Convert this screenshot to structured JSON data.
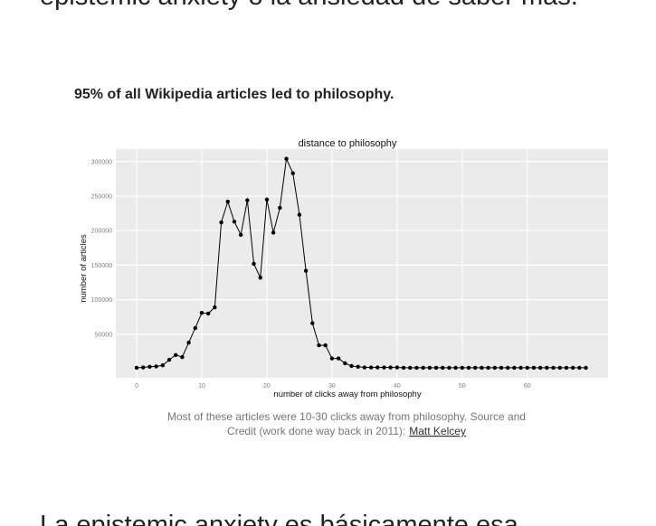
{
  "top_text": "epistemic anxiety o la ansiedad de saber más.",
  "heading": "95% of all Wikipedia articles led to philosophy.",
  "chart_data": {
    "type": "line",
    "title": "distance to philosophy",
    "x_label": "number of clicks away from philosophy",
    "y_label": "number of articles",
    "x": [
      0,
      1,
      2,
      3,
      4,
      5,
      6,
      7,
      8,
      9,
      10,
      11,
      12,
      13,
      14,
      15,
      16,
      17,
      18,
      19,
      20,
      21,
      22,
      23,
      24,
      25,
      26,
      27,
      28,
      29,
      30,
      31,
      32,
      33,
      34,
      35,
      36,
      37,
      38,
      39,
      40,
      41,
      42,
      43,
      44,
      45,
      46,
      47,
      48,
      49,
      50,
      51,
      52,
      53,
      54,
      55,
      56,
      57,
      58,
      59,
      60,
      61,
      62,
      63,
      64,
      65,
      66,
      67,
      68,
      69
    ],
    "values": [
      1500,
      2000,
      3000,
      3500,
      5000,
      13000,
      20000,
      17000,
      38000,
      59000,
      81000,
      80000,
      89000,
      212000,
      242000,
      213000,
      194000,
      244000,
      152000,
      132000,
      245000,
      197000,
      233000,
      304000,
      283000,
      223000,
      142000,
      66000,
      34000,
      34000,
      15000,
      15000,
      8000,
      4000,
      3000,
      2000,
      2000,
      2000,
      2000,
      2000,
      2000,
      1500,
      1500,
      1500,
      1500,
      1500,
      1500,
      1500,
      1500,
      1500,
      1500,
      1500,
      1500,
      1500,
      1500,
      1500,
      1500,
      1500,
      1500,
      1500,
      1500,
      1500,
      1500,
      1500,
      1500,
      1500,
      1500,
      1500,
      1500,
      1500
    ],
    "color": "#000000",
    "xlim": [
      -3.2,
      72.4
    ],
    "ylim": [
      -13000,
      318000
    ],
    "xticks": [
      0,
      10,
      20,
      30,
      40,
      50,
      60
    ],
    "yticks": [
      50000,
      100000,
      150000,
      200000,
      250000,
      300000
    ],
    "grid": true
  },
  "caption": {
    "line1": "Most of these articles were 10-30 clicks away from philosophy. Source and",
    "line2": "Credit (work done way back in 2011):",
    "link": "Matt Kelcey"
  },
  "bottom_text": "La epistemic anxiety es básicamente esa"
}
